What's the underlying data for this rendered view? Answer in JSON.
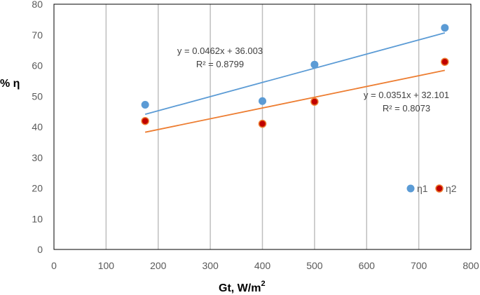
{
  "chart_data": {
    "type": "scatter",
    "title": "",
    "xlabel": "Gt, W/m",
    "xlabel_superscript": "2",
    "ylabel": "% η",
    "xlim": [
      0,
      800
    ],
    "ylim": [
      0,
      80
    ],
    "x_ticks": [
      0,
      100,
      200,
      300,
      400,
      500,
      600,
      700,
      800
    ],
    "y_ticks": [
      0,
      10,
      20,
      30,
      40,
      50,
      60,
      70,
      80
    ],
    "grid": "vertical",
    "legend_placement": "bottom-right",
    "series": [
      {
        "name": "η1",
        "color": "#5B9BD5",
        "marker": "circle",
        "points": [
          [
            175,
            47.2
          ],
          [
            400,
            48.4
          ],
          [
            500,
            60.3
          ],
          [
            750,
            72.3
          ]
        ],
        "trendline": {
          "slope": 0.0462,
          "intercept": 36.003,
          "x_range": [
            175,
            750
          ],
          "color": "#5B9BD5"
        },
        "equation": "y = 0.0462x + 36.003",
        "r_squared": "R² = 0.8799"
      },
      {
        "name": "η2",
        "color": "#ED7D31",
        "marker_fill": "#C00000",
        "marker": "circle",
        "points": [
          [
            175,
            41.9
          ],
          [
            400,
            41.0
          ],
          [
            500,
            48.2
          ],
          [
            750,
            61.2
          ]
        ],
        "trendline": {
          "slope": 0.0351,
          "intercept": 32.101,
          "x_range": [
            175,
            750
          ],
          "color": "#ED7D31"
        },
        "equation": "y = 0.0351x + 32.101",
        "r_squared": "R² = 0.8073"
      }
    ]
  }
}
